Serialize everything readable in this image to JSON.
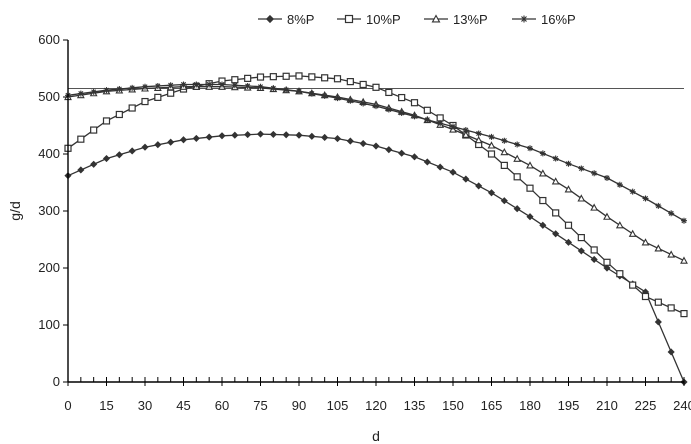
{
  "chart_data": {
    "type": "line",
    "title": "",
    "xlabel": "d",
    "ylabel": "g/d",
    "xlim": [
      0,
      240
    ],
    "ylim": [
      0,
      600
    ],
    "x_ticks": [
      0,
      15,
      30,
      45,
      60,
      75,
      90,
      105,
      120,
      135,
      150,
      165,
      180,
      195,
      210,
      225,
      240
    ],
    "y_ticks": [
      0,
      100,
      200,
      300,
      400,
      500,
      600
    ],
    "grid": false,
    "legend_position": "top",
    "reference_line": {
      "y": 515
    },
    "series": [
      {
        "name": "8%P",
        "marker": "diamond",
        "color": "#333333",
        "x": [
          0,
          15,
          30,
          45,
          60,
          75,
          90,
          105,
          120,
          135,
          150,
          165,
          180,
          195,
          210,
          225,
          240
        ],
        "y": [
          362,
          392,
          412,
          425,
          432,
          435,
          433,
          427,
          414,
          395,
          368,
          332,
          290,
          245,
          200,
          158,
          0
        ]
      },
      {
        "name": "10%P",
        "marker": "square",
        "color": "#333333",
        "x": [
          0,
          15,
          30,
          45,
          60,
          75,
          90,
          105,
          120,
          135,
          150,
          165,
          180,
          195,
          210,
          225,
          240
        ],
        "y": [
          410,
          458,
          492,
          514,
          528,
          535,
          537,
          532,
          517,
          490,
          450,
          400,
          340,
          275,
          210,
          150,
          120
        ]
      },
      {
        "name": "13%P",
        "marker": "triangle",
        "color": "#333333",
        "x": [
          0,
          15,
          30,
          45,
          60,
          75,
          90,
          105,
          120,
          135,
          150,
          165,
          180,
          195,
          210,
          225,
          240
        ],
        "y": [
          500,
          510,
          515,
          518,
          518,
          516,
          510,
          500,
          487,
          468,
          443,
          415,
          380,
          338,
          290,
          245,
          213
        ]
      },
      {
        "name": "16%P",
        "marker": "asterisk",
        "color": "#333333",
        "x": [
          0,
          15,
          30,
          45,
          60,
          75,
          90,
          105,
          120,
          135,
          150,
          165,
          180,
          195,
          210,
          225,
          240
        ],
        "y": [
          503,
          512,
          518,
          522,
          522,
          518,
          510,
          498,
          484,
          466,
          448,
          430,
          410,
          383,
          358,
          322,
          283
        ]
      }
    ]
  }
}
